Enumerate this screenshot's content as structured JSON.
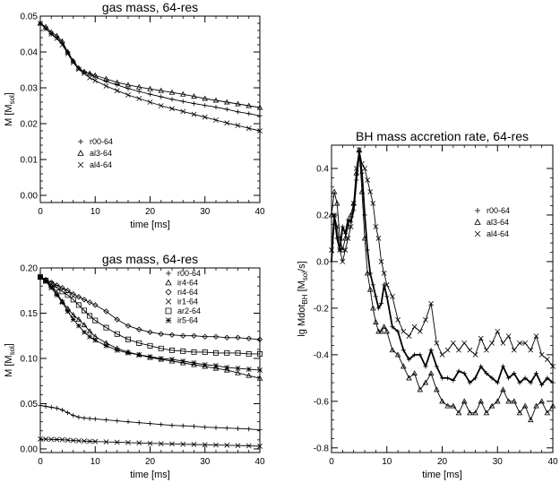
{
  "chart_data": [
    {
      "type": "line",
      "title": "gas mass, 64-res",
      "xlabel": "time [ms]",
      "ylabel": "M [M",
      "ylabel_sub": "sol",
      "ylabel_end": "]",
      "xlim": [
        0,
        40
      ],
      "ylim": [
        -0.002,
        0.05
      ],
      "xticks": [
        "0",
        "10",
        "20",
        "30",
        "40"
      ],
      "yticks": [
        "0.00",
        "0.01",
        "0.02",
        "0.03",
        "0.04",
        "0.05"
      ],
      "legend_position": "center-left",
      "series": [
        {
          "name": "r00-64",
          "marker": "plus",
          "line": "thin",
          "x": [
            0,
            1,
            2,
            3,
            4,
            5,
            6,
            7,
            8,
            9,
            10,
            12,
            14,
            16,
            18,
            20,
            22,
            24,
            26,
            28,
            30,
            32,
            34,
            36,
            38,
            40
          ],
          "y": [
            0.048,
            0.0465,
            0.045,
            0.044,
            0.0425,
            0.04,
            0.0375,
            0.0355,
            0.0345,
            0.034,
            0.033,
            0.0318,
            0.0308,
            0.0298,
            0.029,
            0.0282,
            0.0275,
            0.0268,
            0.0262,
            0.0256,
            0.0251,
            0.0246,
            0.024,
            0.0233,
            0.0228,
            0.0222
          ]
        },
        {
          "name": "al3-64",
          "marker": "triangle",
          "line": "thin",
          "x": [
            0,
            1,
            2,
            3,
            4,
            5,
            6,
            7,
            8,
            9,
            10,
            12,
            14,
            16,
            18,
            20,
            22,
            24,
            26,
            28,
            30,
            32,
            34,
            36,
            38,
            40
          ],
          "y": [
            0.048,
            0.047,
            0.0455,
            0.0445,
            0.043,
            0.04,
            0.0375,
            0.0355,
            0.0345,
            0.034,
            0.0335,
            0.0325,
            0.0315,
            0.0308,
            0.0302,
            0.0297,
            0.0292,
            0.0287,
            0.0282,
            0.0276,
            0.027,
            0.0265,
            0.026,
            0.0255,
            0.025,
            0.0245
          ]
        },
        {
          "name": "al4-64",
          "marker": "x",
          "line": "thin",
          "x": [
            0,
            1,
            2,
            3,
            4,
            5,
            6,
            7,
            8,
            9,
            10,
            12,
            14,
            16,
            18,
            20,
            22,
            24,
            26,
            28,
            30,
            32,
            34,
            36,
            38,
            40
          ],
          "y": [
            0.048,
            0.0465,
            0.045,
            0.0438,
            0.042,
            0.0395,
            0.037,
            0.0352,
            0.034,
            0.0328,
            0.032,
            0.0305,
            0.0292,
            0.028,
            0.027,
            0.026,
            0.025,
            0.0242,
            0.0234,
            0.0226,
            0.0218,
            0.021,
            0.0202,
            0.0195,
            0.0187,
            0.018
          ]
        }
      ]
    },
    {
      "type": "line",
      "title": "gas mass, 64-res",
      "xlabel": "time [ms]",
      "ylabel": "M [M",
      "ylabel_sub": "sol",
      "ylabel_end": "]",
      "xlim": [
        0,
        40
      ],
      "ylim": [
        -0.004,
        0.2
      ],
      "xticks": [
        "0",
        "10",
        "20",
        "30",
        "40"
      ],
      "yticks": [
        "0.00",
        "0.05",
        "0.10",
        "0.15",
        "0.20"
      ],
      "legend_position": "top-right",
      "series": [
        {
          "name": "r00-64",
          "marker": "plus",
          "line": "thin",
          "x": [
            0,
            1,
            2,
            3,
            4,
            5,
            6,
            7,
            8,
            9,
            10,
            12,
            14,
            16,
            18,
            20,
            22,
            24,
            26,
            28,
            30,
            32,
            34,
            36,
            38,
            40
          ],
          "y": [
            0.048,
            0.047,
            0.046,
            0.045,
            0.043,
            0.04,
            0.037,
            0.035,
            0.034,
            0.0335,
            0.033,
            0.032,
            0.031,
            0.03,
            0.029,
            0.028,
            0.027,
            0.026,
            0.0255,
            0.025,
            0.024,
            0.0235,
            0.023,
            0.0225,
            0.022,
            0.021
          ]
        },
        {
          "name": "ir4-64",
          "marker": "triangle",
          "line": "thin",
          "x": [
            0,
            1,
            2,
            3,
            4,
            5,
            6,
            7,
            8,
            9,
            10,
            12,
            14,
            16,
            18,
            20,
            22,
            24,
            26,
            28,
            30,
            32,
            34,
            36,
            38,
            40
          ],
          "y": [
            0.19,
            0.186,
            0.18,
            0.172,
            0.163,
            0.155,
            0.148,
            0.143,
            0.137,
            0.13,
            0.124,
            0.117,
            0.111,
            0.107,
            0.104,
            0.101,
            0.099,
            0.097,
            0.095,
            0.093,
            0.091,
            0.089,
            0.087,
            0.084,
            0.081,
            0.078
          ]
        },
        {
          "name": "ri4-64",
          "marker": "diamond",
          "line": "thin",
          "x": [
            0,
            1,
            2,
            3,
            4,
            5,
            6,
            7,
            8,
            9,
            10,
            12,
            14,
            16,
            18,
            20,
            22,
            24,
            26,
            28,
            30,
            32,
            34,
            36,
            38,
            40
          ],
          "y": [
            0.19,
            0.187,
            0.184,
            0.181,
            0.178,
            0.175,
            0.171,
            0.168,
            0.165,
            0.162,
            0.159,
            0.152,
            0.143,
            0.136,
            0.132,
            0.129,
            0.127,
            0.126,
            0.125,
            0.125,
            0.124,
            0.124,
            0.123,
            0.123,
            0.122,
            0.121
          ]
        },
        {
          "name": "ir1-64",
          "marker": "x",
          "line": "thin",
          "x": [
            0,
            1,
            2,
            3,
            4,
            5,
            6,
            7,
            8,
            9,
            10,
            12,
            14,
            16,
            18,
            20,
            22,
            24,
            26,
            28,
            30,
            32,
            34,
            36,
            38,
            40
          ],
          "y": [
            0.011,
            0.0108,
            0.0106,
            0.0104,
            0.0102,
            0.0098,
            0.0094,
            0.009,
            0.0087,
            0.0084,
            0.0082,
            0.0078,
            0.0074,
            0.007,
            0.0066,
            0.0062,
            0.0058,
            0.0055,
            0.0052,
            0.0049,
            0.0046,
            0.0043,
            0.004,
            0.0037,
            0.0034,
            0.003
          ]
        },
        {
          "name": "ar2-64",
          "marker": "square",
          "line": "thin",
          "x": [
            0,
            1,
            2,
            3,
            4,
            5,
            6,
            7,
            8,
            9,
            10,
            12,
            14,
            16,
            18,
            20,
            22,
            24,
            26,
            28,
            30,
            32,
            34,
            36,
            38,
            40
          ],
          "y": [
            0.19,
            0.186,
            0.182,
            0.178,
            0.174,
            0.17,
            0.165,
            0.159,
            0.153,
            0.147,
            0.142,
            0.134,
            0.127,
            0.121,
            0.117,
            0.114,
            0.111,
            0.109,
            0.108,
            0.107,
            0.107,
            0.106,
            0.106,
            0.106,
            0.105,
            0.105
          ]
        },
        {
          "name": "ir5-64",
          "marker": "star",
          "line": "thin",
          "x": [
            0,
            1,
            2,
            3,
            4,
            5,
            6,
            7,
            8,
            9,
            10,
            12,
            14,
            16,
            18,
            20,
            22,
            24,
            26,
            28,
            30,
            32,
            34,
            36,
            38,
            40
          ],
          "y": [
            0.19,
            0.185,
            0.178,
            0.17,
            0.162,
            0.152,
            0.143,
            0.136,
            0.129,
            0.124,
            0.12,
            0.114,
            0.109,
            0.106,
            0.104,
            0.102,
            0.1,
            0.099,
            0.097,
            0.095,
            0.093,
            0.092,
            0.09,
            0.089,
            0.088,
            0.087
          ]
        }
      ]
    },
    {
      "type": "line",
      "title": "BH mass accretion rate, 64-res",
      "xlabel": "time [ms]",
      "ylabel": "lg Mdot",
      "ylabel_sub": "BH",
      "ylabel_end": " [M",
      "ylabel_sub2": "sol",
      "ylabel_end2": "/s]",
      "xlim": [
        0,
        40
      ],
      "ylim": [
        -0.82,
        0.5
      ],
      "xticks": [
        "0",
        "10",
        "20",
        "30",
        "40"
      ],
      "yticks": [
        "-0.8",
        "-0.6",
        "-0.4",
        "-0.2",
        "0.0",
        "0.2",
        "0.4"
      ],
      "legend_position": "upper-right",
      "series": [
        {
          "name": "r00-64",
          "marker": "plus",
          "line": "thick",
          "x": [
            0,
            0.5,
            1,
            1.5,
            2,
            2.5,
            3,
            3.5,
            4,
            4.5,
            5,
            5.5,
            6,
            6.5,
            7,
            7.5,
            8,
            8.5,
            9,
            9.5,
            10,
            11,
            12,
            13,
            14,
            15,
            16,
            17,
            18,
            19,
            20,
            21,
            22,
            23,
            24,
            25,
            26,
            27,
            28,
            29,
            30,
            31,
            32,
            33,
            34,
            35,
            36,
            37,
            38,
            39,
            40
          ],
          "y": [
            0.0,
            0.2,
            0.1,
            0.05,
            0.15,
            0.12,
            0.18,
            0.17,
            0.22,
            0.35,
            0.47,
            0.38,
            0.2,
            0.05,
            -0.05,
            -0.1,
            -0.15,
            -0.2,
            -0.18,
            -0.1,
            -0.15,
            -0.28,
            -0.3,
            -0.38,
            -0.42,
            -0.4,
            -0.4,
            -0.45,
            -0.38,
            -0.45,
            -0.5,
            -0.5,
            -0.51,
            -0.47,
            -0.48,
            -0.52,
            -0.5,
            -0.45,
            -0.48,
            -0.5,
            -0.52,
            -0.45,
            -0.5,
            -0.48,
            -0.52,
            -0.5,
            -0.52,
            -0.48,
            -0.53,
            -0.5,
            -0.52
          ]
        },
        {
          "name": "al3-64",
          "marker": "triangle",
          "line": "thin",
          "x": [
            0,
            0.5,
            1,
            1.5,
            2,
            2.5,
            3,
            3.5,
            4,
            4.5,
            5,
            5.5,
            6,
            6.5,
            7,
            7.5,
            8,
            8.5,
            9,
            9.5,
            10,
            11,
            12,
            13,
            14,
            15,
            16,
            17,
            18,
            19,
            20,
            21,
            22,
            23,
            24,
            25,
            26,
            27,
            28,
            29,
            30,
            31,
            32,
            33,
            34,
            35,
            36,
            37,
            38,
            39,
            40
          ],
          "y": [
            0.2,
            0.3,
            0.25,
            0.1,
            0.05,
            0.1,
            0.15,
            0.2,
            0.25,
            0.38,
            0.48,
            0.3,
            0.1,
            -0.05,
            -0.12,
            -0.2,
            -0.26,
            -0.3,
            -0.3,
            -0.28,
            -0.3,
            -0.38,
            -0.4,
            -0.45,
            -0.5,
            -0.48,
            -0.55,
            -0.52,
            -0.48,
            -0.55,
            -0.6,
            -0.62,
            -0.62,
            -0.65,
            -0.6,
            -0.65,
            -0.65,
            -0.6,
            -0.65,
            -0.62,
            -0.6,
            -0.55,
            -0.6,
            -0.6,
            -0.65,
            -0.62,
            -0.68,
            -0.62,
            -0.6,
            -0.65,
            -0.62
          ]
        },
        {
          "name": "al4-64",
          "marker": "x",
          "line": "thin",
          "x": [
            0,
            0.5,
            1,
            1.5,
            2,
            2.5,
            3,
            3.5,
            4,
            4.5,
            5,
            5.5,
            6,
            6.5,
            7,
            7.5,
            8,
            8.5,
            9,
            9.5,
            10,
            11,
            12,
            13,
            14,
            15,
            16,
            17,
            18,
            19,
            20,
            21,
            22,
            23,
            24,
            25,
            26,
            27,
            28,
            29,
            30,
            31,
            32,
            33,
            34,
            35,
            36,
            37,
            38,
            39,
            40
          ],
          "y": [
            0.05,
            0.2,
            0.15,
            0.05,
            0.0,
            0.05,
            0.1,
            0.15,
            0.25,
            0.4,
            0.48,
            0.42,
            0.4,
            0.35,
            0.3,
            0.25,
            0.15,
            0.1,
            0.0,
            -0.05,
            -0.1,
            -0.15,
            -0.25,
            -0.3,
            -0.32,
            -0.28,
            -0.3,
            -0.25,
            -0.18,
            -0.35,
            -0.4,
            -0.38,
            -0.35,
            -0.38,
            -0.35,
            -0.38,
            -0.4,
            -0.33,
            -0.38,
            -0.35,
            -0.3,
            -0.35,
            -0.32,
            -0.38,
            -0.35,
            -0.35,
            -0.38,
            -0.32,
            -0.4,
            -0.42,
            -0.45
          ]
        }
      ]
    }
  ]
}
